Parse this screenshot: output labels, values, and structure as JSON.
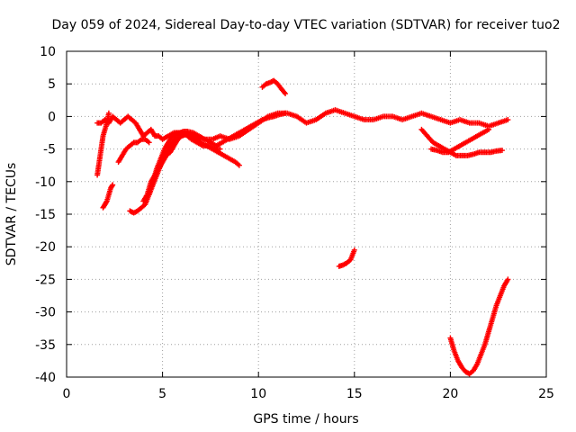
{
  "chart_data": {
    "type": "scatter",
    "title": "Day 059 of 2024, Sidereal Day-to-day VTEC variation (SDTVAR) for receiver tuo2",
    "xlabel": "GPS time / hours",
    "ylabel": "SDTVAR / TECUs",
    "xlim": [
      0,
      25
    ],
    "ylim": [
      -40,
      10
    ],
    "xticks": [
      0,
      5,
      10,
      15,
      20,
      25
    ],
    "yticks": [
      10,
      5,
      0,
      -5,
      -10,
      -15,
      -20,
      -25,
      -30,
      -35,
      -40
    ],
    "xtick_labels": [
      "0",
      "5",
      "10",
      "15",
      "20",
      "25"
    ],
    "ytick_labels": [
      "10",
      "5",
      "0",
      "-5",
      "-10",
      "-15",
      "-20",
      "-25",
      "-30",
      "-35",
      "-40"
    ],
    "grid": true,
    "marker": "+",
    "color": "#ff0000",
    "series": [
      {
        "name": "s1",
        "x": [
          1.6,
          1.8,
          2.0,
          2.2,
          2.4,
          2.6,
          2.8,
          3.0,
          3.2,
          3.4,
          3.6,
          3.8,
          4.0,
          4.2,
          4.4,
          4.6,
          4.8,
          5.0,
          5.3,
          5.6,
          6.0,
          6.4,
          6.8,
          7.2,
          7.6,
          8.0,
          8.5,
          9.0,
          9.5,
          10.0,
          10.5,
          11.0,
          11.5,
          12.0,
          12.5,
          13.0,
          13.5,
          14.0,
          14.5,
          15.0,
          15.5,
          16.0,
          16.5,
          17.0,
          17.5,
          18.0,
          18.5,
          19.0,
          19.5,
          20.0,
          20.5,
          21.0,
          21.5,
          22.0,
          22.5,
          23.0
        ],
        "y": [
          -1,
          -1,
          -0.5,
          -1,
          0,
          -0.5,
          -1,
          -0.5,
          0,
          -0.5,
          -1,
          -2,
          -3,
          -2.5,
          -2,
          -3,
          -3,
          -3.5,
          -3,
          -2.5,
          -2.5,
          -3,
          -3,
          -3.5,
          -3.5,
          -3,
          -3.5,
          -3,
          -2,
          -1,
          0,
          0.5,
          0.5,
          0,
          -1,
          -0.5,
          0.5,
          1,
          0.5,
          0,
          -0.5,
          -0.5,
          0,
          0,
          -0.5,
          0,
          0.5,
          0,
          -0.5,
          -1,
          -0.5,
          -1,
          -1,
          -1.5,
          -1,
          -0.5
        ]
      },
      {
        "name": "s2",
        "x": [
          1.6,
          1.7,
          1.8,
          1.9,
          2.0,
          2.1,
          2.2
        ],
        "y": [
          -9,
          -7,
          -5,
          -3,
          -2,
          -1,
          0.5
        ]
      },
      {
        "name": "s3",
        "x": [
          1.9,
          2.0,
          2.1,
          2.2,
          2.3,
          2.4
        ],
        "y": [
          -14,
          -13.5,
          -13,
          -12,
          -11,
          -10.5
        ]
      },
      {
        "name": "s4",
        "x": [
          3.3,
          3.5,
          3.7,
          3.9,
          4.1,
          4.3,
          4.5,
          4.7,
          4.9,
          5.1,
          5.3,
          5.5,
          5.7,
          5.9,
          6.1,
          6.3,
          6.5,
          6.8,
          7.1,
          7.4,
          7.7,
          8.0
        ],
        "y": [
          -14.5,
          -14.8,
          -14.5,
          -14,
          -13.5,
          -12,
          -10,
          -8,
          -6.5,
          -5,
          -4,
          -3,
          -2.5,
          -2.5,
          -2.5,
          -3,
          -3.5,
          -4,
          -4.5,
          -4.5,
          -5,
          -5
        ]
      },
      {
        "name": "s5",
        "x": [
          4.0,
          4.2,
          4.4,
          4.6,
          4.8,
          5.0,
          5.2,
          5.4,
          5.6,
          5.8,
          6.0,
          6.2,
          6.4,
          6.6,
          6.8,
          7.0,
          7.3,
          7.6,
          7.9,
          8.2,
          8.5,
          8.8,
          9.0
        ],
        "y": [
          -13,
          -12,
          -10,
          -9,
          -8,
          -7,
          -6,
          -5.5,
          -4.5,
          -3.5,
          -3,
          -2.8,
          -2.8,
          -3,
          -3.5,
          -4,
          -4.5,
          -5,
          -5.5,
          -6,
          -6.5,
          -7,
          -7.5
        ]
      },
      {
        "name": "s6",
        "x": [
          4.3,
          4.5,
          4.7,
          4.9,
          5.1,
          5.3,
          5.5,
          5.7,
          5.9,
          6.1,
          6.3,
          6.6,
          6.9,
          7.2,
          7.5,
          7.8,
          8.1,
          8.4,
          8.7,
          9.0,
          9.3,
          9.6,
          9.9,
          10.2,
          10.5,
          10.8,
          11.1,
          11.4
        ],
        "y": [
          -12,
          -10.5,
          -9,
          -7.5,
          -6,
          -5,
          -4,
          -3,
          -2.5,
          -2.3,
          -2.3,
          -2.5,
          -3,
          -3.5,
          -4,
          -4.5,
          -4,
          -3.5,
          -3,
          -2.5,
          -2,
          -1.5,
          -1,
          -0.5,
          -0.2,
          0,
          0.3,
          0.5
        ]
      },
      {
        "name": "s7",
        "x": [
          2.7,
          2.9,
          3.1,
          3.3,
          3.5,
          3.7,
          3.9,
          4.1,
          4.3
        ],
        "y": [
          -7,
          -6,
          -5,
          -4.5,
          -4,
          -4,
          -3.5,
          -3.5,
          -4
        ]
      },
      {
        "name": "s8",
        "x": [
          10.2,
          10.4,
          10.6,
          10.8,
          11.0,
          11.2,
          11.4
        ],
        "y": [
          4.5,
          5,
          5.2,
          5.5,
          5,
          4.2,
          3.5
        ]
      },
      {
        "name": "s9",
        "x": [
          14.2,
          14.4,
          14.6,
          14.8,
          15.0
        ],
        "y": [
          -23,
          -22.8,
          -22.5,
          -22,
          -20.5
        ]
      },
      {
        "name": "s10",
        "x": [
          18.5,
          18.8,
          19.1,
          19.4,
          19.7,
          20.0,
          20.3,
          20.6,
          20.9,
          21.2,
          21.5,
          21.8,
          22.1,
          22.4,
          22.7
        ],
        "y": [
          -2,
          -3,
          -4,
          -4.5,
          -5,
          -5.5,
          -6,
          -6,
          -6,
          -5.8,
          -5.5,
          -5.5,
          -5.5,
          -5.3,
          -5.2
        ]
      },
      {
        "name": "s11",
        "x": [
          19.0,
          19.3,
          19.6,
          19.9,
          20.2,
          20.5,
          20.8,
          21.1,
          21.4,
          21.7,
          22.0
        ],
        "y": [
          -5,
          -5.2,
          -5.5,
          -5.5,
          -5,
          -4.5,
          -4,
          -3.5,
          -3,
          -2.5,
          -2
        ]
      },
      {
        "name": "s12",
        "x": [
          20.0,
          20.2,
          20.4,
          20.6,
          20.8,
          21.0,
          21.2,
          21.4,
          21.6,
          21.8,
          22.0,
          22.2,
          22.4,
          22.6,
          22.8,
          23.0
        ],
        "y": [
          -34,
          -36,
          -37.5,
          -38.5,
          -39.2,
          -39.5,
          -39,
          -38,
          -36.5,
          -35,
          -33,
          -31,
          -29,
          -27.5,
          -26,
          -25
        ]
      }
    ]
  }
}
